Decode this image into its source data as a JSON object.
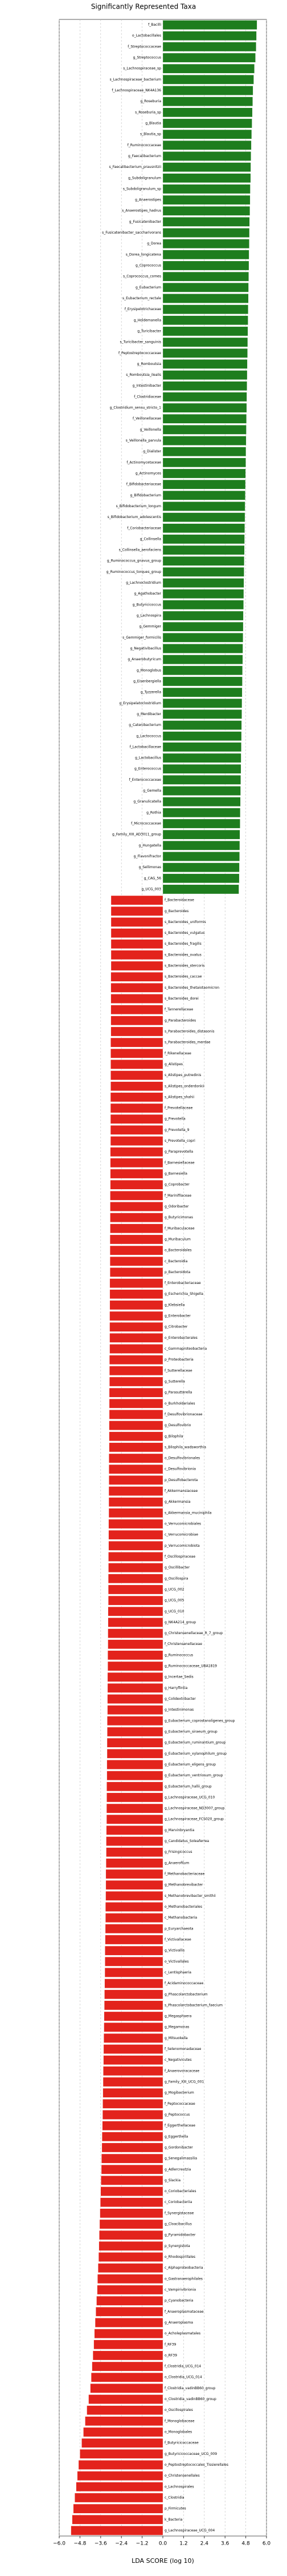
{
  "chart_data": {
    "type": "hbar_diverging",
    "title": "Significantly Represented Taxa",
    "xlabel": "LDA SCORE (log 10)",
    "xlim": [
      -6.0,
      6.0
    ],
    "xticks": [
      {
        "value": -6,
        "label": "−6.0"
      },
      {
        "value": -4.8,
        "label": "−4.8"
      },
      {
        "value": -3.6,
        "label": "−3.6"
      },
      {
        "value": -2.4,
        "label": "−2.4"
      },
      {
        "value": -1.2,
        "label": "−1.2"
      },
      {
        "value": 0,
        "label": "0.0"
      },
      {
        "value": 1.2,
        "label": "1.2"
      },
      {
        "value": 2.4,
        "label": "2.4"
      },
      {
        "value": 3.6,
        "label": "3.6"
      },
      {
        "value": 4.8,
        "label": "4.8"
      },
      {
        "value": 6,
        "label": "6.0"
      }
    ],
    "grid": true,
    "color_positive": "#1e7d1e",
    "color_negative": "#e3231c",
    "categories": [
      "f_Bacilli",
      "o_Lactobacillales",
      "f_Streptococcaceae",
      "g_Streptococcus",
      "s_Lachnospiraceae_sp",
      "s_Lachnospiraceae_bacterium",
      "f_Lachnospiraceae_NK4A136",
      "g_Roseburia",
      "s_Roseburia_sp",
      "g_Blautia",
      "s_Blautia_sp",
      "f_Ruminococcaceae",
      "g_Faecalibacterium",
      "s_Faecalibacterium_prausnitzii",
      "g_Subdoligranulum",
      "s_Subdoligranulum_sp",
      "g_Anaerostipes",
      "s_Anaerostipes_hadrus",
      "g_Fusicatenibacter",
      "s_Fusicatenibacter_saccharivorans",
      "g_Dorea",
      "s_Dorea_longicatena",
      "g_Coprococcus",
      "s_Coprococcus_comes",
      "g_Eubacterium",
      "s_Eubacterium_rectale",
      "f_Erysipelotrichaceae",
      "g_Holdemanella",
      "g_Turicibacter",
      "s_Turicibacter_sanguinis",
      "f_Peptostreptococcaceae",
      "g_Romboutsia",
      "s_Romboutsia_ilealis",
      "g_Intestinibacter",
      "f_Clostridiaceae",
      "g_Clostridium_sensu_stricto_1",
      "f_Veillonellaceae",
      "g_Veillonella",
      "s_Veillonella_parvula",
      "g_Dialister",
      "f_Actinomycetaceae",
      "g_Actinomyces",
      "f_Bifidobacteriaceae",
      "g_Bifidobacterium",
      "s_Bifidobacterium_longum",
      "s_Bifidobacterium_adolescentis",
      "f_Coriobacteriaceae",
      "g_Collinsella",
      "s_Collinsella_aerofaciens",
      "g_Ruminococcus_gnavus_group",
      "g_Ruminococcus_torques_group",
      "g_Lachnoclostridium",
      "g_Agathobacter",
      "g_Butyricicoccus",
      "g_Lachnospira",
      "g_Gemmiger",
      "s_Gemmiger_formicilis",
      "g_Negativibacillus",
      "g_Anaerobutyricum",
      "g_Monoglobus",
      "g_Eisenbergiella",
      "g_Tyzzerella",
      "g_Erysipelatoclostridium",
      "g_Merdibacter",
      "g_Catenibacterium",
      "g_Lactococcus",
      "f_Lactobacillaceae",
      "g_Lactobacillus",
      "g_Enterococcus",
      "f_Enterococcaceae",
      "g_Gemella",
      "g_Granulicatella",
      "g_Rothia",
      "f_Micrococcaceae",
      "g_Family_XIII_AD3011_group",
      "g_Hungatella",
      "g_Flavonifractor",
      "g_Sellimonas",
      "g_CAG_56",
      "g_UCG_003",
      "f_Bacteroidaceae",
      "g_Bacteroides",
      "s_Bacteroides_uniformis",
      "s_Bacteroides_vulgatus",
      "s_Bacteroides_fragilis",
      "s_Bacteroides_ovatus",
      "s_Bacteroides_stercoris",
      "s_Bacteroides_caccae",
      "s_Bacteroides_thetaiotaomicron",
      "s_Bacteroides_dorei",
      "f_Tannerellaceae",
      "g_Parabacteroides",
      "s_Parabacteroides_distasonis",
      "s_Parabacteroides_merdae",
      "f_Rikenellaceae",
      "g_Alistipes",
      "s_Alistipes_putredinis",
      "s_Alistipes_onderdonkii",
      "s_Alistipes_shahii",
      "f_Prevotellaceae",
      "g_Prevotella",
      "g_Prevotella_9",
      "s_Prevotella_copri",
      "g_Paraprevotella",
      "f_Barnesiellaceae",
      "g_Barnesiella",
      "g_Coprobacter",
      "f_Marinifilaceae",
      "g_Odoribacter",
      "g_Butyricimonas",
      "f_Muribaculaceae",
      "g_Muribaculum",
      "o_Bacteroidales",
      "c_Bacteroidia",
      "p_Bacteroidota",
      "f_Enterobacteriaceae",
      "g_Escherichia_Shigella",
      "g_Klebsiella",
      "g_Enterobacter",
      "g_Citrobacter",
      "o_Enterobacterales",
      "c_Gammaproteobacteria",
      "p_Proteobacteria",
      "f_Sutterellaceae",
      "g_Sutterella",
      "g_Parasutterella",
      "o_Burkholderiales",
      "f_Desulfovibrionaceae",
      "g_Desulfovibrio",
      "g_Bilophila",
      "s_Bilophila_wadsworthia",
      "o_Desulfovibrionales",
      "c_Desulfovibrionia",
      "p_Desulfobacterota",
      "f_Akkermansiaceae",
      "g_Akkermansia",
      "s_Akkermansia_muciniphila",
      "o_Verrucomicrobiales",
      "c_Verrucomicrobiae",
      "p_Verrucomicrobiota",
      "f_Oscillospiraceae",
      "g_Oscillibacter",
      "g_Oscillospira",
      "g_UCG_002",
      "g_UCG_005",
      "g_UCG_010",
      "g_NK4A214_group",
      "g_Christensenellaceae_R_7_group",
      "f_Christensenellaceae",
      "g_Ruminococcus",
      "g_Ruminococcaceae_UBA1819",
      "g_Incertae_Sedis",
      "g_Harryflintia",
      "g_Colidextribacter",
      "g_Intestinimonas",
      "g_Eubacterium_coprostanoligenes_group",
      "g_Eubacterium_siraeum_group",
      "g_Eubacterium_ruminantium_group",
      "g_Eubacterium_xylanophilum_group",
      "g_Eubacterium_eligens_group",
      "g_Eubacterium_ventriosum_group",
      "g_Eubacterium_hallii_group",
      "g_Lachnospiraceae_UCG_010",
      "g_Lachnospiraceae_ND3007_group",
      "g_Lachnospiraceae_FCS020_group",
      "g_Marvinbryantia",
      "g_Candidatus_Soleaferrea",
      "g_Frisingicoccus",
      "g_Anaerofilum",
      "f_Methanobacteriaceae",
      "g_Methanobrevibacter",
      "s_Methanobrevibacter_smithii",
      "o_Methanobacteriales",
      "c_Methanobacteria",
      "p_Euryarchaeota",
      "f_Victivallaceae",
      "g_Victivallis",
      "o_Victivallales",
      "c_Lentisphaeria",
      "f_Acidaminococcaceae",
      "g_Phascolarctobacterium",
      "s_Phascolarctobacterium_faecium",
      "g_Megasphaera",
      "g_Megamonas",
      "g_Mitsuokella",
      "f_Selenomonadaceae",
      "c_Negativicutes",
      "f_Anaerovoracaceae",
      "g_Family_XIII_UCG_001",
      "g_Mogibacterium",
      "f_Peptococcaceae",
      "g_Peptococcus",
      "f_Eggerthellaceae",
      "g_Eggerthella",
      "g_Gordonibacter",
      "g_Senegalimassilia",
      "g_Adlercreutzia",
      "g_Slackia",
      "o_Coriobacteriales",
      "c_Coriobacteriia",
      "f_Synergistaceae",
      "g_Cloacibacillus",
      "g_Pyramidobacter",
      "p_Synergistota",
      "o_Rhodospirillales",
      "c_Alphaproteobacteria",
      "o_Gastranaerophilales",
      "c_Vampirivibrionia",
      "p_Cyanobacteria",
      "f_Anaeroplasmataceae",
      "g_Anaeroplasma",
      "o_Acholeplasmatales",
      "f_RF39",
      "o_RF39",
      "f_Clostridia_UCG_014",
      "o_Clostridia_UCG_014",
      "f_Clostridia_vadinBB60_group",
      "o_Clostridia_vadinBB60_group",
      "o_Oscillospirales",
      "f_Monoglobaceae",
      "o_Monoglobales",
      "f_Butyricicoccaceae",
      "g_Butyricicoccaceae_UCG_009",
      "o_Peptostreptococcales_Tissierellales",
      "o_Christensenellales",
      "o_Lachnospirales",
      "c_Clostridia",
      "p_Firmicutes",
      "k_Bacteria",
      "g_Lachnospiraceae_UCG_004"
    ],
    "values": [
      5.45,
      5.42,
      5.4,
      5.36,
      5.3,
      5.26,
      5.22,
      5.2,
      5.18,
      5.16,
      5.14,
      5.12,
      5.1,
      5.09,
      5.08,
      5.06,
      5.05,
      5.04,
      5.02,
      5.01,
      5.0,
      4.99,
      4.98,
      4.97,
      4.96,
      4.95,
      4.94,
      4.93,
      4.92,
      4.91,
      4.9,
      4.89,
      4.88,
      4.87,
      4.86,
      4.85,
      4.84,
      4.83,
      4.82,
      4.81,
      4.8,
      4.79,
      4.78,
      4.77,
      4.76,
      4.75,
      4.74,
      4.73,
      4.72,
      4.71,
      4.7,
      4.69,
      4.68,
      4.67,
      4.66,
      4.65,
      4.64,
      4.63,
      4.62,
      4.61,
      4.6,
      4.59,
      4.58,
      4.57,
      4.56,
      4.55,
      4.54,
      4.53,
      4.52,
      4.51,
      4.5,
      4.49,
      4.48,
      4.47,
      4.46,
      4.45,
      4.44,
      4.43,
      4.42,
      4.4,
      -3.0,
      -3.0,
      -3.0,
      -3.0,
      -3.0,
      -3.0,
      -3.0,
      -3.01,
      -3.01,
      -3.01,
      -3.01,
      -3.01,
      -3.01,
      -3.02,
      -3.02,
      -3.02,
      -3.02,
      -3.02,
      -3.03,
      -3.03,
      -3.03,
      -3.03,
      -3.03,
      -3.04,
      -3.04,
      -3.04,
      -3.04,
      -3.05,
      -3.05,
      -3.05,
      -3.05,
      -3.06,
      -3.06,
      -3.06,
      -3.06,
      -3.07,
      -3.07,
      -3.07,
      -3.08,
      -3.08,
      -3.08,
      -3.08,
      -3.09,
      -3.09,
      -3.09,
      -3.1,
      -3.1,
      -3.1,
      -3.11,
      -3.11,
      -3.11,
      -3.12,
      -3.12,
      -3.12,
      -3.13,
      -3.13,
      -3.13,
      -3.14,
      -3.14,
      -3.14,
      -3.15,
      -3.15,
      -3.16,
      -3.16,
      -3.16,
      -3.17,
      -3.17,
      -3.18,
      -3.18,
      -3.19,
      -3.19,
      -3.2,
      -3.2,
      -3.21,
      -3.21,
      -3.22,
      -3.22,
      -3.23,
      -3.23,
      -3.24,
      -3.24,
      -3.25,
      -3.25,
      -3.26,
      -3.26,
      -3.27,
      -3.28,
      -3.28,
      -3.29,
      -3.3,
      -3.3,
      -3.31,
      -3.32,
      -3.32,
      -3.33,
      -3.34,
      -3.35,
      -3.35,
      -3.36,
      -3.37,
      -3.38,
      -3.39,
      -3.4,
      -3.41,
      -3.42,
      -3.43,
      -3.44,
      -3.45,
      -3.46,
      -3.47,
      -3.48,
      -3.49,
      -3.5,
      -3.52,
      -3.53,
      -3.55,
      -3.56,
      -3.58,
      -3.6,
      -3.62,
      -3.64,
      -3.66,
      -3.68,
      -3.7,
      -3.72,
      -3.75,
      -3.78,
      -3.8,
      -3.84,
      -3.88,
      -3.92,
      -3.96,
      -4.0,
      -4.05,
      -4.1,
      -4.15,
      -4.2,
      -4.3,
      -4.4,
      -4.5,
      -4.6,
      -4.7,
      -4.8,
      -4.88,
      -4.95,
      -5.02,
      -5.1,
      -5.18,
      -5.25,
      -5.32
    ]
  }
}
